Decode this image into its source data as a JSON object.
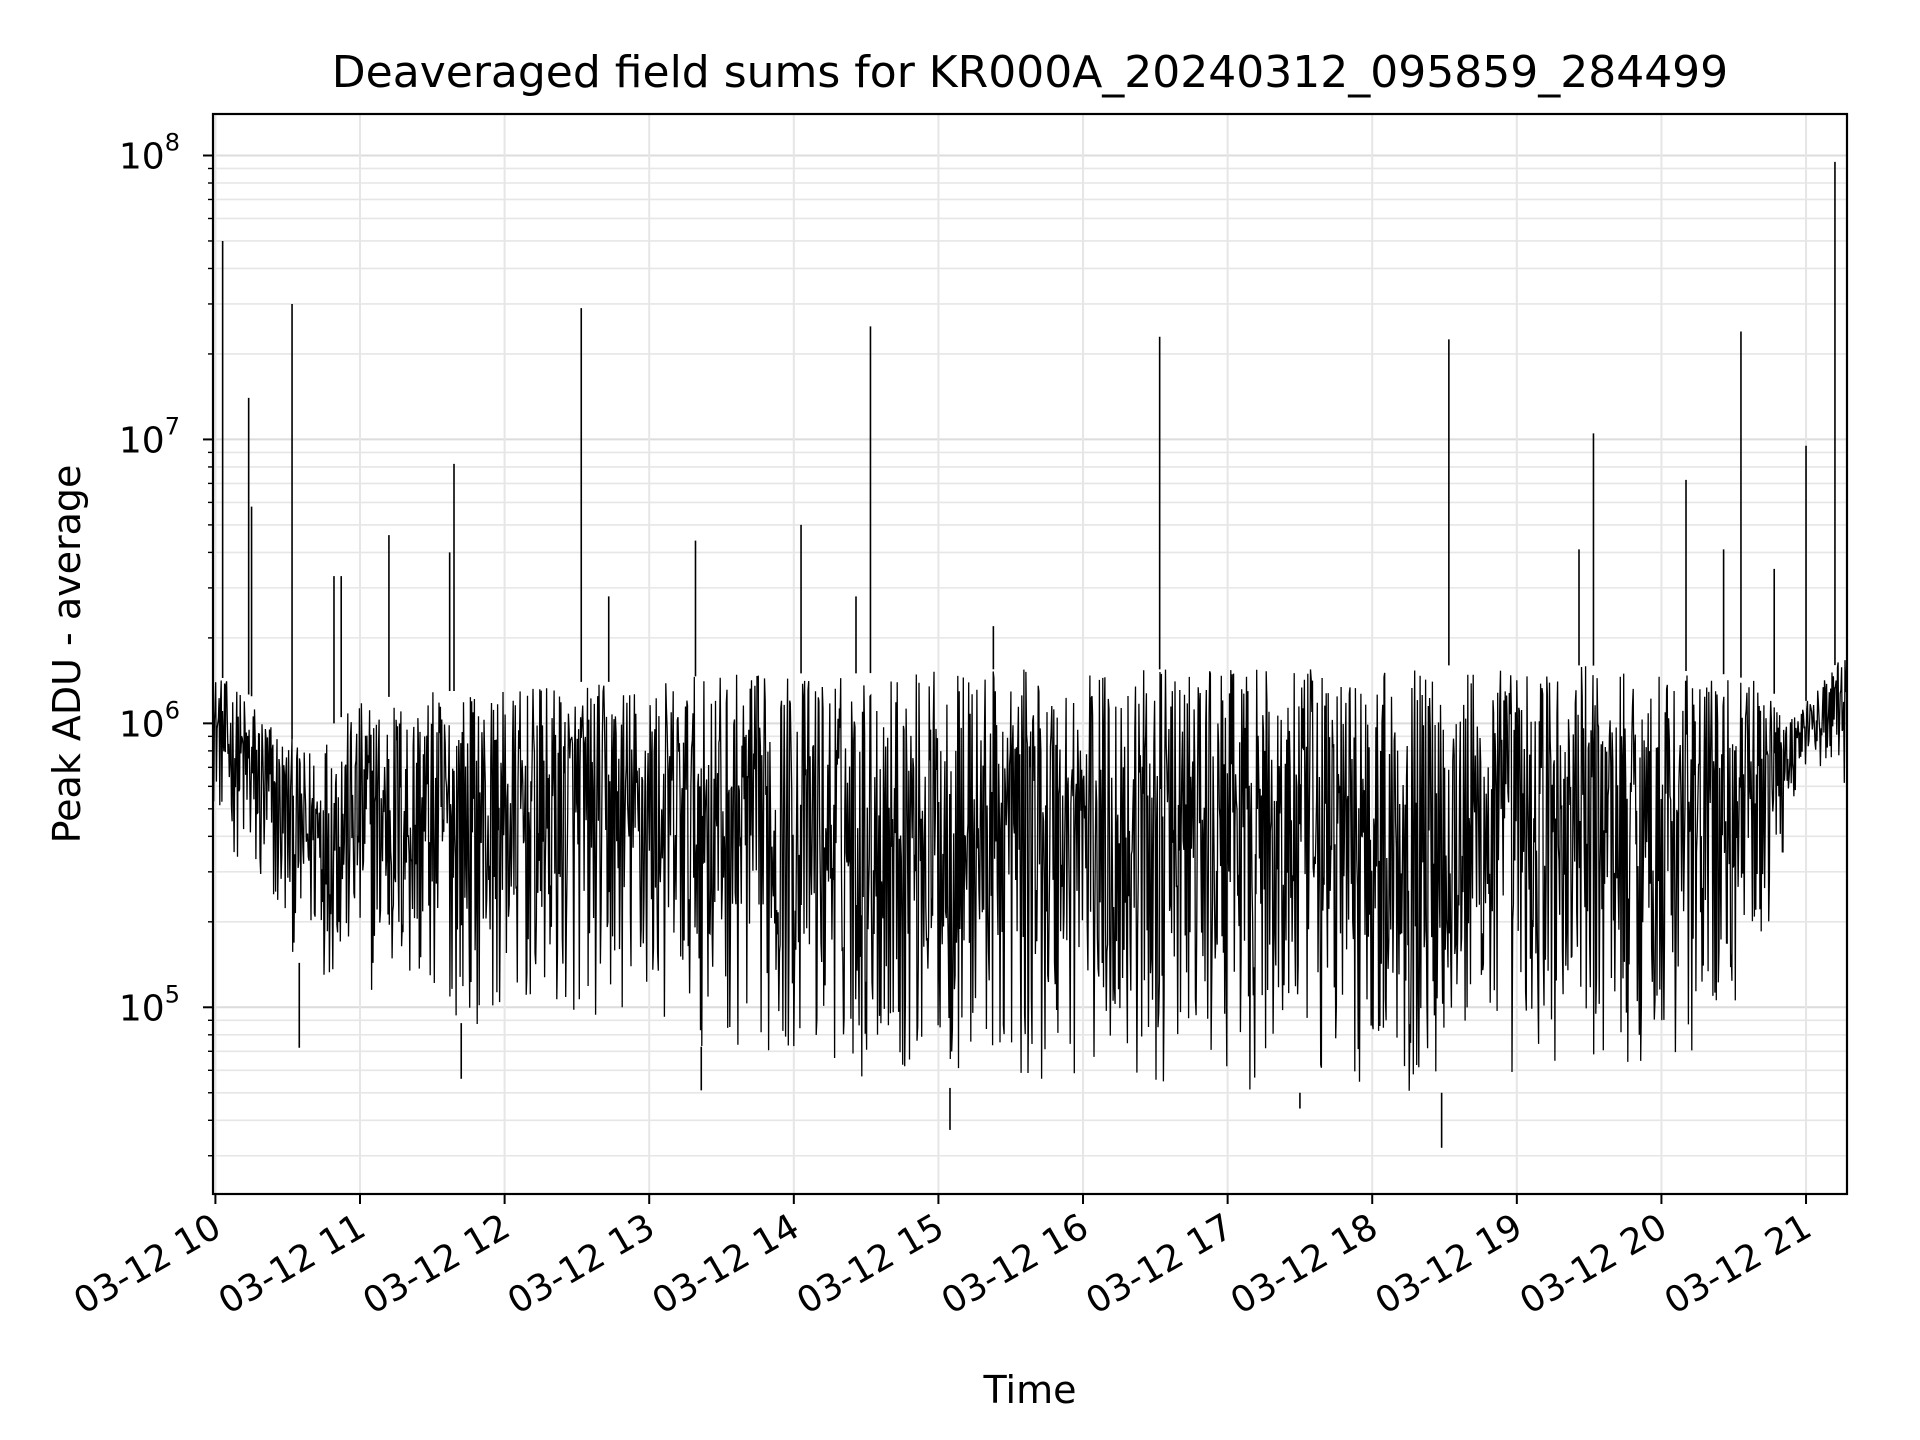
{
  "chart_data": {
    "type": "line",
    "title": "Deaveraged field sums for KR000A_20240312_095859_284499",
    "xlabel": "Time",
    "ylabel": "Peak ADU - average",
    "y_scale": "log",
    "xlim": [
      "2024-03-12 09:59",
      "2024-03-12 21:17"
    ],
    "ylim": [
      22000,
      140000000
    ],
    "grid": true,
    "line_color": "#000000",
    "x_tick_labels": [
      "03-12 10",
      "03-12 11",
      "03-12 12",
      "03-12 13",
      "03-12 14",
      "03-12 15",
      "03-12 16",
      "03-12 17",
      "03-12 18",
      "03-12 19",
      "03-12 20",
      "03-12 21"
    ],
    "x_tick_hours": [
      10,
      11,
      12,
      13,
      14,
      15,
      16,
      17,
      18,
      19,
      20,
      21
    ],
    "y_ticks": [
      {
        "base": "10",
        "exp": "5",
        "value": 100000
      },
      {
        "base": "10",
        "exp": "6",
        "value": 1000000
      },
      {
        "base": "10",
        "exp": "7",
        "value": 10000000
      },
      {
        "base": "10",
        "exp": "8",
        "value": 100000000
      }
    ],
    "band_profile": {
      "description_x_unit": "hours",
      "x": [
        10.0,
        10.3,
        10.6,
        11.0,
        11.5,
        12.0,
        12.5,
        13.0,
        13.5,
        14.0,
        14.5,
        15.0,
        15.5,
        16.0,
        16.5,
        17.0,
        17.5,
        18.0,
        18.5,
        19.0,
        19.5,
        20.0,
        20.4,
        20.7,
        20.9,
        21.0,
        21.28
      ],
      "upper": [
        1500000,
        1200000,
        800000,
        1200000,
        1300000,
        1300000,
        1400000,
        1400000,
        1500000,
        1500000,
        1500000,
        1550000,
        1550000,
        1550000,
        1550000,
        1550000,
        1550000,
        1550000,
        1600000,
        1600000,
        1600000,
        1550000,
        1500000,
        1400000,
        1100000,
        1200000,
        1800000
      ],
      "lower": [
        500000,
        200000,
        140000,
        110000,
        90000,
        85000,
        85000,
        80000,
        70000,
        60000,
        55000,
        52000,
        52000,
        50000,
        50000,
        50000,
        50000,
        50000,
        50000,
        52000,
        55000,
        60000,
        70000,
        150000,
        500000,
        700000,
        600000
      ]
    },
    "spikes": [
      {
        "x": 10.05,
        "y": 50000000
      },
      {
        "x": 10.23,
        "y": 14000000
      },
      {
        "x": 10.25,
        "y": 5800000
      },
      {
        "x": 10.53,
        "y": 30000000
      },
      {
        "x": 10.82,
        "y": 3300000
      },
      {
        "x": 10.87,
        "y": 3300000
      },
      {
        "x": 11.2,
        "y": 4600000
      },
      {
        "x": 11.65,
        "y": 8200000
      },
      {
        "x": 11.62,
        "y": 4000000
      },
      {
        "x": 12.53,
        "y": 29000000
      },
      {
        "x": 12.72,
        "y": 2800000
      },
      {
        "x": 13.32,
        "y": 4400000
      },
      {
        "x": 14.05,
        "y": 5000000
      },
      {
        "x": 14.43,
        "y": 2800000
      },
      {
        "x": 14.53,
        "y": 25000000
      },
      {
        "x": 15.38,
        "y": 2200000
      },
      {
        "x": 16.53,
        "y": 23000000
      },
      {
        "x": 18.53,
        "y": 22500000
      },
      {
        "x": 19.43,
        "y": 4100000
      },
      {
        "x": 19.53,
        "y": 10500000
      },
      {
        "x": 20.17,
        "y": 7200000
      },
      {
        "x": 20.43,
        "y": 4100000
      },
      {
        "x": 20.55,
        "y": 24000000
      },
      {
        "x": 20.78,
        "y": 3500000
      },
      {
        "x": 21.0,
        "y": 9500000
      },
      {
        "x": 21.2,
        "y": 95000000
      }
    ],
    "dips": [
      {
        "x": 10.58,
        "y": 72000
      },
      {
        "x": 11.7,
        "y": 56000
      },
      {
        "x": 13.36,
        "y": 51000
      },
      {
        "x": 15.08,
        "y": 37000
      },
      {
        "x": 18.48,
        "y": 32000
      },
      {
        "x": 17.5,
        "y": 44000
      }
    ]
  }
}
